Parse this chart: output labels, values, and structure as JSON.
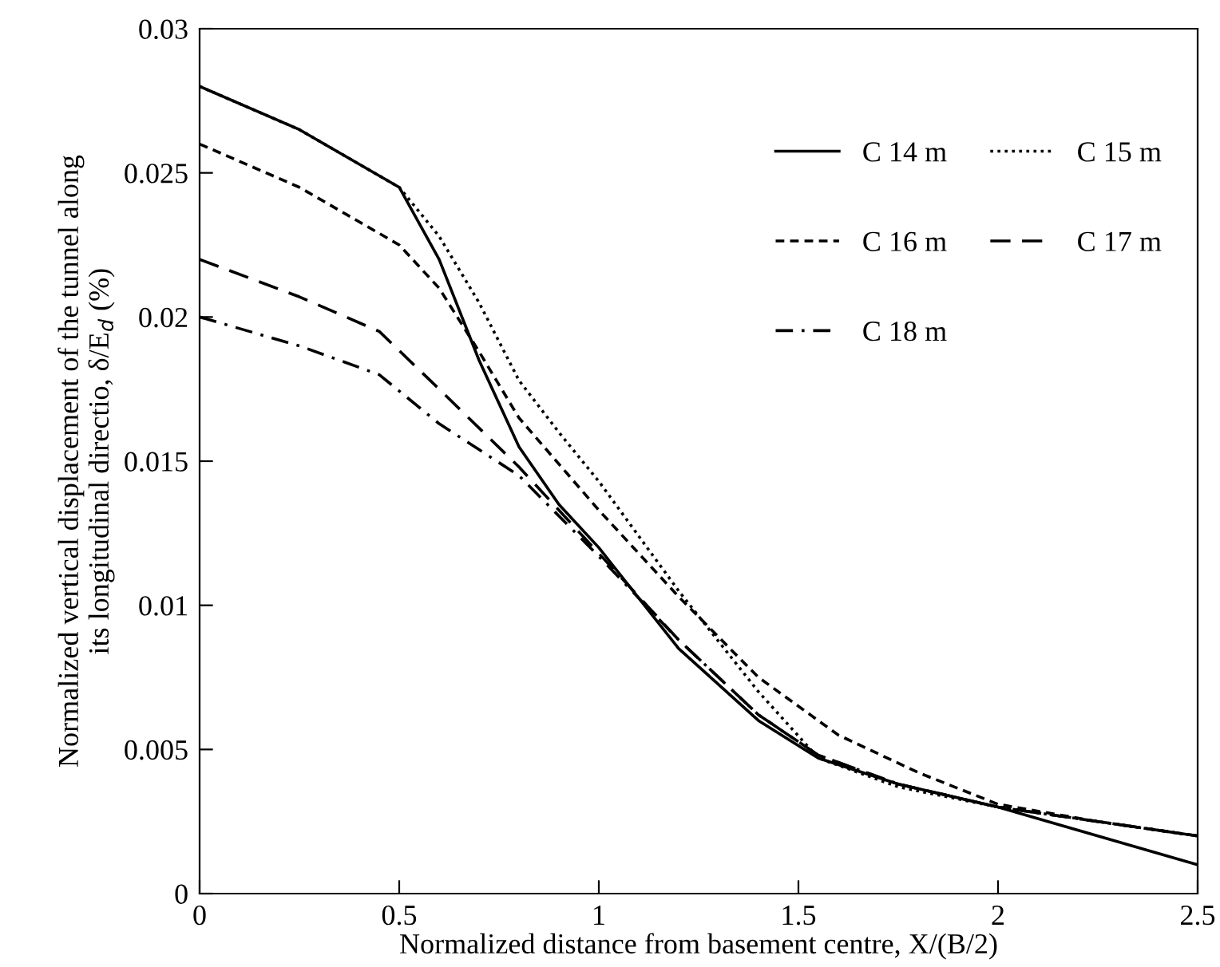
{
  "chart_data": {
    "type": "line",
    "xlabel": "Normalized distance from basement centre, X/(B/2)",
    "ylabel": "Normalized vertical displacement of the tunnel along\nits longitudinal directio, δ/E$_{d}$ (%)",
    "xlim": [
      0,
      2.5
    ],
    "ylim": [
      0,
      0.03
    ],
    "xticks": [
      0,
      0.5,
      1,
      1.5,
      2,
      2.5
    ],
    "yticks": [
      0,
      0.005,
      0.01,
      0.015,
      0.02,
      0.025,
      0.03
    ],
    "grid": false,
    "legend": "top right",
    "marker": "none",
    "series": [
      {
        "name": "C 14 m",
        "color": "#000000",
        "line_style": "solid",
        "x": [
          0,
          0.25,
          0.5,
          0.6,
          0.7,
          0.8,
          0.9,
          1.0,
          1.2,
          1.4,
          1.55,
          1.75,
          2.0,
          2.25,
          2.5
        ],
        "values": [
          0.028,
          0.0265,
          0.0245,
          0.022,
          0.0185,
          0.0155,
          0.0135,
          0.012,
          0.0085,
          0.006,
          0.0047,
          0.0038,
          0.003,
          0.002,
          0.001
        ]
      },
      {
        "name": "C 15 m",
        "color": "#000000",
        "line_style": "dotted",
        "x": [
          0,
          0.25,
          0.5,
          0.6,
          0.7,
          0.8,
          0.9,
          1.0,
          1.2,
          1.4,
          1.55,
          1.75,
          2.0,
          2.25,
          2.5
        ],
        "values": [
          0.028,
          0.0265,
          0.0245,
          0.0228,
          0.0205,
          0.0178,
          0.016,
          0.0143,
          0.0105,
          0.007,
          0.0047,
          0.0037,
          0.003,
          0.0025,
          0.002
        ]
      },
      {
        "name": "C 16 m",
        "color": "#000000",
        "line_style": "dashed",
        "x": [
          0,
          0.25,
          0.5,
          0.6,
          0.7,
          0.8,
          1.0,
          1.2,
          1.4,
          1.6,
          1.8,
          2.0,
          2.25,
          2.5
        ],
        "values": [
          0.026,
          0.0245,
          0.0225,
          0.021,
          0.0188,
          0.0165,
          0.0133,
          0.0103,
          0.0075,
          0.0055,
          0.0042,
          0.0031,
          0.0025,
          0.002
        ]
      },
      {
        "name": "C 17 m",
        "color": "#000000",
        "line_style": "long dashed",
        "x": [
          0,
          0.25,
          0.45,
          0.6,
          0.8,
          1.0,
          1.2,
          1.4,
          1.55,
          1.75,
          2.0,
          2.25,
          2.5
        ],
        "values": [
          0.022,
          0.0207,
          0.0195,
          0.0175,
          0.0148,
          0.0118,
          0.0088,
          0.0062,
          0.0048,
          0.0038,
          0.003,
          0.0025,
          0.002
        ]
      },
      {
        "name": "C 18 m",
        "color": "#000000",
        "line_style": "dash-dot",
        "x": [
          0,
          0.25,
          0.45,
          0.6,
          0.8,
          1.0,
          1.2,
          1.4,
          1.55,
          1.75,
          2.0,
          2.25,
          2.5
        ],
        "values": [
          0.02,
          0.019,
          0.018,
          0.0163,
          0.0145,
          0.0117,
          0.0088,
          0.0062,
          0.0048,
          0.0038,
          0.003,
          0.0025,
          0.002
        ]
      }
    ]
  }
}
